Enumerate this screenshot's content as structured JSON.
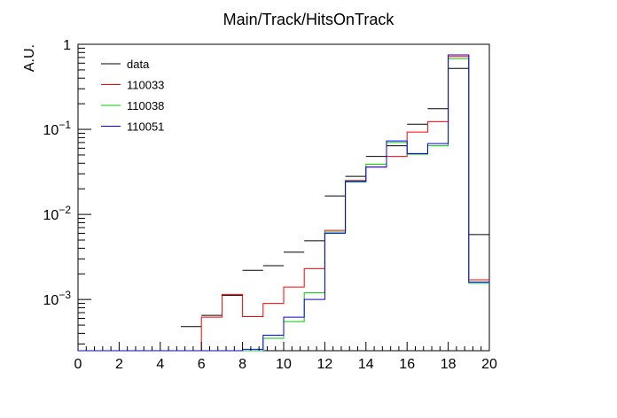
{
  "chart_data": {
    "type": "line",
    "title": "Main/Track/HitsOnTrack",
    "xlabel": "",
    "ylabel": "A.U.",
    "xlim": [
      0,
      20
    ],
    "ylim": [
      0.00025,
      1
    ],
    "log_y": true,
    "legend_position": "top-left",
    "x_ticks": [
      {
        "value": 0,
        "label": "0"
      },
      {
        "value": 2,
        "label": "2"
      },
      {
        "value": 4,
        "label": "4"
      },
      {
        "value": 6,
        "label": "6"
      },
      {
        "value": 8,
        "label": "8"
      },
      {
        "value": 10,
        "label": "10"
      },
      {
        "value": 12,
        "label": "12"
      },
      {
        "value": 14,
        "label": "14"
      },
      {
        "value": 16,
        "label": "16"
      },
      {
        "value": 18,
        "label": "18"
      },
      {
        "value": 20,
        "label": "20"
      }
    ],
    "y_ticks": [
      {
        "value": 0.001,
        "base": "10",
        "exp": "−3"
      },
      {
        "value": 0.01,
        "base": "10",
        "exp": "−2"
      },
      {
        "value": 0.1,
        "base": "10",
        "exp": "−1"
      },
      {
        "value": 1,
        "base": "1",
        "exp": ""
      }
    ],
    "bin_edges": [
      0,
      1,
      2,
      3,
      4,
      5,
      6,
      7,
      8,
      9,
      10,
      11,
      12,
      13,
      14,
      15,
      16,
      17,
      18,
      19,
      20
    ],
    "series": [
      {
        "name": "data",
        "color": "#000000",
        "style": "markers",
        "values": [
          0,
          0,
          0,
          0,
          0,
          0.00048,
          0.00065,
          0.00112,
          0.0022,
          0.0025,
          0.0036,
          0.0049,
          0.0165,
          0.028,
          0.048,
          0.064,
          0.115,
          0.175,
          0.52,
          0.0058
        ]
      },
      {
        "name": "110033",
        "color": "#ff0000",
        "style": "step",
        "values": [
          0,
          0,
          0,
          0,
          0,
          0,
          0.00062,
          0.00115,
          0.00063,
          0.0009,
          0.0014,
          0.0023,
          0.0065,
          0.025,
          0.036,
          0.048,
          0.093,
          0.123,
          0.72,
          0.0017
        ]
      },
      {
        "name": "110038",
        "color": "#00cc00",
        "style": "step",
        "values": [
          0,
          0,
          0,
          0,
          0,
          0,
          0,
          0,
          0.00024,
          0.00035,
          0.00055,
          0.0012,
          0.0062,
          0.024,
          0.039,
          0.07,
          0.051,
          0.064,
          0.68,
          0.00155
        ]
      },
      {
        "name": "110051",
        "color": "#0000ff",
        "style": "step",
        "values": [
          0,
          0,
          0,
          0,
          0,
          0,
          0,
          0,
          0.00026,
          0.00038,
          0.00062,
          0.001,
          0.006,
          0.0245,
          0.036,
          0.073,
          0.052,
          0.068,
          0.75,
          0.0016
        ]
      }
    ]
  }
}
